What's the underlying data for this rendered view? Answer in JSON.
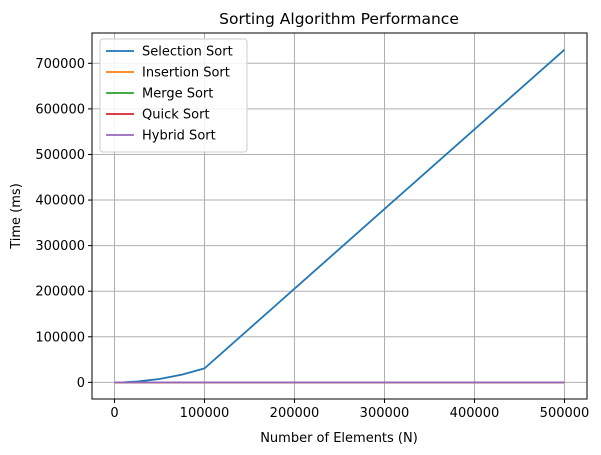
{
  "chart_data": {
    "type": "line",
    "title": "Sorting Algorithm Performance",
    "xlabel": "Number of Elements (N)",
    "ylabel": "Time (ms)",
    "xlim": [
      -25000,
      525000
    ],
    "ylim": [
      -36500,
      766500
    ],
    "xticks": [
      0,
      100000,
      200000,
      300000,
      400000,
      500000
    ],
    "yticks": [
      0,
      100000,
      200000,
      300000,
      400000,
      500000,
      600000,
      700000
    ],
    "grid": true,
    "legend_position": "top-left",
    "series": [
      {
        "name": "Selection Sort",
        "color": "#1f77b4",
        "x": [
          0,
          10000,
          25000,
          50000,
          75000,
          100000,
          500000
        ],
        "y": [
          0,
          300,
          1800,
          7300,
          17000,
          30700,
          730000
        ]
      },
      {
        "name": "Insertion Sort",
        "color": "#ff7f0e",
        "x": [
          0,
          10000,
          25000,
          50000,
          75000,
          100000,
          500000
        ],
        "y": [
          0,
          0,
          0,
          0,
          0,
          0,
          0
        ]
      },
      {
        "name": "Merge Sort",
        "color": "#2ca02c",
        "x": [
          0,
          10000,
          25000,
          50000,
          75000,
          100000,
          500000
        ],
        "y": [
          0,
          0,
          0,
          0,
          0,
          0,
          0
        ]
      },
      {
        "name": "Quick Sort",
        "color": "#d62728",
        "x": [
          0,
          10000,
          25000,
          50000,
          75000,
          100000,
          500000
        ],
        "y": [
          0,
          0,
          0,
          0,
          0,
          0,
          0
        ]
      },
      {
        "name": "Hybrid Sort",
        "color": "#9467bd",
        "x": [
          0,
          10000,
          25000,
          50000,
          75000,
          100000,
          500000
        ],
        "y": [
          0,
          0,
          0,
          0,
          0,
          0,
          0
        ]
      }
    ]
  }
}
